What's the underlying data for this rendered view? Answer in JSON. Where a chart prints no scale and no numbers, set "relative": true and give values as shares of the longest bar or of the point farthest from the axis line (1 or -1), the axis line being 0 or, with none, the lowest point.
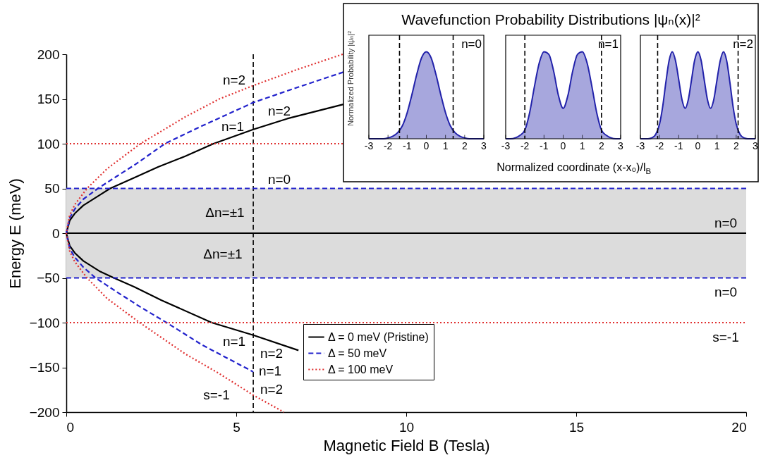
{
  "chart_data": [
    {
      "type": "line",
      "xlabel": "Magnetic Field B (Tesla)",
      "ylabel": "Energy E (meV)",
      "xlim": [
        0,
        20
      ],
      "xticks": [
        0,
        5,
        10,
        15,
        20
      ],
      "ylim": [
        -200,
        200
      ],
      "yticks": [
        -200,
        -150,
        -100,
        -50,
        0,
        50,
        100,
        150,
        200
      ],
      "grid": false,
      "legend": "bottom",
      "series": [
        {
          "name": "Δ = 0 meV (Pristine)",
          "color": "#000000",
          "line_style": "solid",
          "x": [
            0,
            20
          ],
          "values": [
            0,
            0
          ]
        },
        {
          "color": "#000000",
          "line_style": "solid",
          "x": [
            8.15,
            6.5,
            5.5,
            4.33,
            3.5,
            2.7,
            2,
            1.29,
            1,
            0.5,
            0.25,
            0.1,
            0,
            0.1,
            0.25,
            0.5,
            1,
            1.4,
            2,
            2.8,
            4.28,
            5.5,
            6.83
          ],
          "values": [
            144,
            128,
            116,
            100,
            86,
            74,
            62,
            50,
            43,
            31,
            22,
            14,
            0,
            -14,
            -22,
            -31,
            -43,
            -50,
            -60,
            -75,
            -100,
            -114,
            -131
          ]
        },
        {
          "name": "Δ = 50 meV",
          "color": "#2222cc",
          "line_style": "dashed",
          "x": [
            8.15,
            6.8,
            5.5,
            4,
            2.9,
            2,
            1.5,
            0.93,
            0.5,
            0.25,
            0.1,
            0,
            0.1,
            0.25,
            0.5,
            0.86,
            1.5,
            2.2,
            2.95,
            4,
            5.5
          ],
          "values": [
            180,
            163,
            146,
            120,
            100,
            76,
            64,
            50,
            38,
            27,
            17,
            0,
            -17,
            -27,
            -38,
            -50,
            -66,
            -83,
            -100,
            -125,
            -155
          ]
        },
        {
          "color": "#2222cc",
          "line_style": "dashed",
          "x": [
            0,
            20
          ],
          "values": [
            50,
            50
          ]
        },
        {
          "color": "#2222cc",
          "line_style": "dashed",
          "x": [
            0,
            20
          ],
          "values": [
            -50,
            -50
          ]
        },
        {
          "name": "Δ = 100 meV",
          "color": "#e03030",
          "line_style": "dotted",
          "x": [
            8.13,
            6.8,
            5.5,
            4.5,
            3.5,
            2.18,
            1.2,
            0.61,
            0.25,
            0.1,
            0,
            0.1,
            0.25,
            0.61,
            1.2,
            2.16,
            3.5,
            4.5,
            5.5,
            6.4
          ],
          "values": [
            200,
            183,
            165,
            150,
            130,
            100,
            72,
            50,
            32,
            20,
            0,
            -20,
            -32,
            -50,
            -73,
            -100,
            -135,
            -157,
            -181,
            -200
          ]
        },
        {
          "color": "#e03030",
          "line_style": "dotted",
          "x": [
            0,
            8.15
          ],
          "values": [
            100,
            100
          ]
        },
        {
          "color": "#e03030",
          "line_style": "dotted",
          "x": [
            0,
            20
          ],
          "values": [
            -100,
            -100
          ]
        }
      ],
      "ref_lines": [
        {
          "axis": "x",
          "value": 5.5,
          "color": "#000000",
          "line_style": "dashed"
        }
      ],
      "bands": [
        {
          "axis": "y",
          "from": -50,
          "to": 50,
          "color": "#dcdcdc"
        }
      ],
      "annotations": [
        "n=2",
        "n=2",
        "n=1",
        "n=0",
        "Δn=±1",
        "Δn=±1",
        "n=0",
        "n=0",
        "s=-1",
        "n=1",
        "n=2",
        "n=1",
        "n=2",
        "s=-1"
      ]
    },
    {
      "type": "area",
      "relative": true,
      "ylabel": "Normalized Probability |ψₙ|²",
      "color": "#2222aa",
      "xlim": [
        -3,
        3
      ],
      "xticks": [
        -3,
        -2,
        -1,
        0,
        1,
        2,
        3
      ],
      "tick_labels": "x",
      "x": [
        -3,
        -2.75,
        -2.5,
        -2.25,
        -2,
        -1.75,
        -1.5,
        -1.25,
        -1,
        -0.75,
        -0.5,
        -0.25,
        0,
        0.25,
        0.5,
        0.75,
        1,
        1.25,
        1.5,
        1.75,
        2,
        2.25,
        2.5,
        2.75,
        3
      ],
      "values": [
        0,
        0,
        0,
        0,
        0.01,
        0.03,
        0.07,
        0.15,
        0.3,
        0.51,
        0.74,
        0.93,
        1,
        0.93,
        0.74,
        0.51,
        0.3,
        0.15,
        0.07,
        0.03,
        0.01,
        0,
        0,
        0,
        0
      ],
      "ref_lines": [
        {
          "axis": "x",
          "value": -1.4,
          "color": "#000000",
          "line_style": "dashed"
        },
        {
          "axis": "x",
          "value": 1.4,
          "color": "#000000",
          "line_style": "dashed"
        }
      ],
      "annotations": [
        "n=0"
      ]
    },
    {
      "type": "area",
      "relative": true,
      "title": "Wavefunction Probability Distributions |ψₙ(x)|²",
      "xlabel": "Normalized coordinate (x-x₀)/l$_{B}$",
      "color": "#2222aa",
      "xlim": [
        -3,
        3
      ],
      "xticks": [
        -3,
        -2,
        -1,
        0,
        1,
        2,
        3
      ],
      "tick_labels": "x",
      "x": [
        -3,
        -2.75,
        -2.5,
        -2.25,
        -2,
        -1.75,
        -1.5,
        -1.25,
        -1,
        -0.75,
        -0.5,
        -0.25,
        0,
        0.25,
        0.5,
        0.75,
        1,
        1.25,
        1.5,
        1.75,
        2,
        2.25,
        2.5,
        2.75,
        3
      ],
      "values": [
        0,
        0,
        0.01,
        0.04,
        0.1,
        0.3,
        0.6,
        0.87,
        1,
        0.97,
        0.78,
        0.5,
        0.35,
        0.5,
        0.78,
        0.97,
        1,
        0.87,
        0.6,
        0.3,
        0.1,
        0.04,
        0.01,
        0,
        0
      ],
      "ref_lines": [
        {
          "axis": "x",
          "value": -2,
          "color": "#000000",
          "line_style": "dashed"
        },
        {
          "axis": "x",
          "value": 2,
          "color": "#000000",
          "line_style": "dashed"
        }
      ],
      "annotations": [
        "n=1"
      ]
    },
    {
      "type": "area",
      "relative": true,
      "color": "#2222aa",
      "xlim": [
        -3,
        3
      ],
      "xticks": [
        -3,
        -2,
        -1,
        0,
        1,
        2,
        3
      ],
      "tick_labels": "x",
      "x": [
        -3,
        -2.8,
        -2.6,
        -2.4,
        -2.2,
        -2,
        -1.83,
        -1.67,
        -1.5,
        -1.34,
        -1.17,
        -1,
        -0.83,
        -0.66,
        -0.5,
        -0.33,
        -0.17,
        0,
        0.17,
        0.33,
        0.5,
        0.66,
        0.83,
        1,
        1.17,
        1.34,
        1.5,
        1.67,
        1.83,
        2,
        2.2,
        2.4,
        2.6,
        2.8,
        3
      ],
      "values": [
        0,
        0,
        0,
        0.01,
        0.05,
        0.17,
        0.38,
        0.65,
        0.9,
        1,
        0.9,
        0.68,
        0.45,
        0.35,
        0.45,
        0.68,
        0.9,
        1,
        0.9,
        0.68,
        0.45,
        0.35,
        0.45,
        0.68,
        0.9,
        1,
        0.9,
        0.65,
        0.38,
        0.17,
        0.05,
        0.01,
        0,
        0,
        0
      ],
      "ref_lines": [
        {
          "axis": "x",
          "value": -2.1,
          "color": "#000000",
          "line_style": "dashed"
        },
        {
          "axis": "x",
          "value": 2.1,
          "color": "#000000",
          "line_style": "dashed"
        }
      ],
      "annotations": [
        "n=2"
      ]
    }
  ]
}
